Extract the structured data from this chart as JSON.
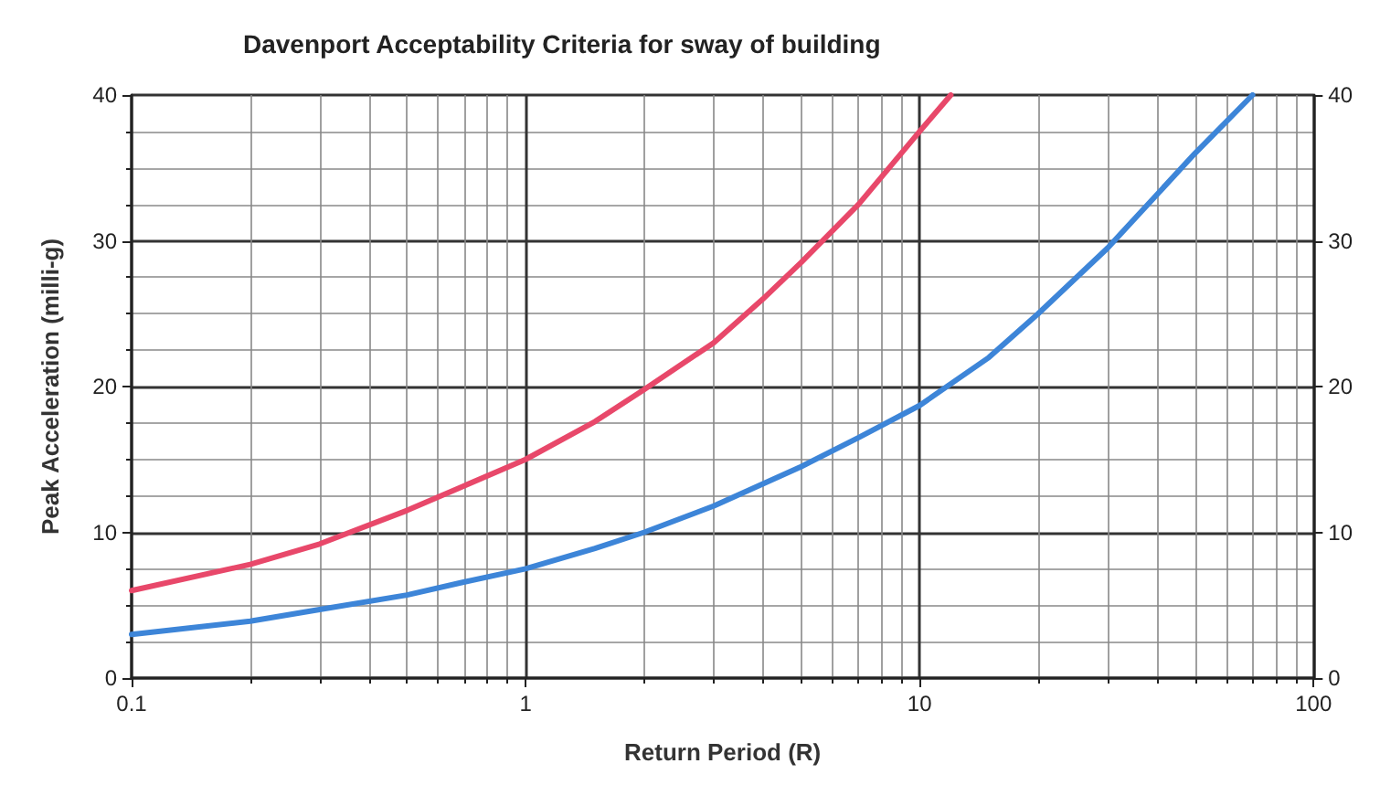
{
  "chart_data": {
    "type": "line",
    "title": "Davenport Acceptability Criteria for sway of building",
    "xlabel": "Return Period (R)",
    "ylabel": "Peak Acceleration (milli-g)",
    "log": "x",
    "xlim": [
      0.1,
      100
    ],
    "xticks": [
      0.1,
      1,
      10,
      100
    ],
    "ylim": [
      0,
      40
    ],
    "yticks": [
      0,
      10,
      20,
      30,
      40
    ],
    "y2lim": [
      0,
      40
    ],
    "y2ticks": [
      0,
      10,
      20,
      30,
      40
    ],
    "grid": true,
    "marker": "none",
    "line_style": "solid",
    "series": [
      {
        "color": "#e8486a",
        "x": [
          0.1,
          0.2,
          0.3,
          0.5,
          0.7,
          1,
          1.5,
          2,
          3,
          4,
          5,
          7,
          10,
          12
        ],
        "values": [
          6,
          7.8,
          9.2,
          11.5,
          13.2,
          15,
          17.6,
          19.8,
          23,
          26,
          28.5,
          32.5,
          37.5,
          40
        ]
      },
      {
        "color": "#3d85d8",
        "x": [
          0.1,
          0.2,
          0.3,
          0.5,
          0.7,
          1,
          1.5,
          2,
          3,
          5,
          7,
          10,
          15,
          20,
          30,
          50,
          70
        ],
        "values": [
          3,
          3.9,
          4.7,
          5.7,
          6.6,
          7.5,
          8.9,
          10,
          11.8,
          14.5,
          16.5,
          18.7,
          22,
          25,
          29.5,
          36,
          40
        ]
      }
    ]
  }
}
